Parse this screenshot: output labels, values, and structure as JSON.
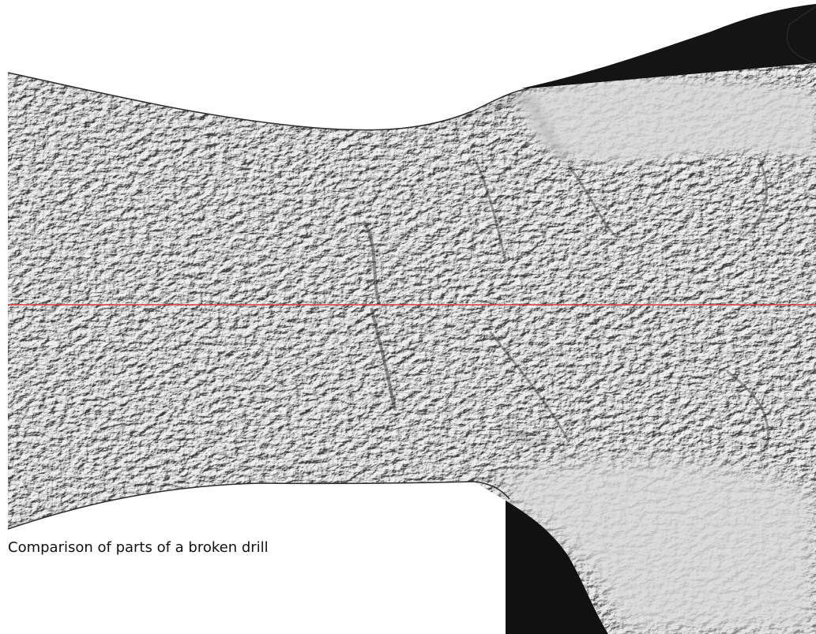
{
  "caption": "Comparison of parts of a broken drill",
  "colors": {
    "background": "#ffffff",
    "split_line": "#d93a3a",
    "surface_light": "#e4e4e4",
    "surface_mid": "#a8a8a8",
    "surface_dark": "#1a1a1a",
    "outline": "#2b2b2b"
  },
  "images": {
    "top_half": "fracture-surface-scan-upper-part",
    "bottom_half": "fracture-surface-scan-lower-part"
  }
}
